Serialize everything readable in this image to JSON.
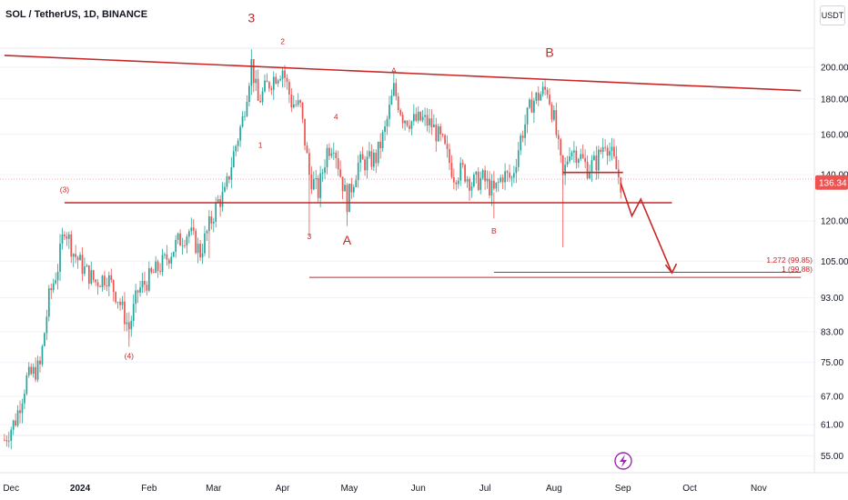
{
  "header": {
    "symbol_title": "SOL / TetherUS, 1D, BINANCE",
    "currency_button": "USDT"
  },
  "colors": {
    "up": "#26a69a",
    "down": "#ef5350",
    "annotation": "#c62828",
    "price_tag": "#ef5350",
    "axis_text": "#131722"
  },
  "chart_data": {
    "type": "candlestick",
    "scale": "log",
    "ylim": [
      52,
      250
    ],
    "y_ticks": [
      "200.00",
      "180.00",
      "160.00",
      "140.00",
      "120.00",
      "105.00",
      "93.00",
      "83.00",
      "75.00",
      "67.00",
      "61.00",
      "55.00"
    ],
    "x_ticks": [
      "Dec",
      "2024",
      "Feb",
      "Mar",
      "Apr",
      "May",
      "Jun",
      "Jul",
      "Aug",
      "Sep",
      "Oct",
      "Nov"
    ],
    "last_price": "136.34",
    "fib_label": "1.272 (99.85)",
    "fib_label_overlap": "1 (99.88)",
    "wave_labels": [
      {
        "text": "3",
        "date": "2024-03-18",
        "price": 232,
        "size": "large"
      },
      {
        "text": "2",
        "date": "2024-04-01",
        "price": 216,
        "size": "small"
      },
      {
        "text": "1",
        "date": "2024-03-22",
        "price": 153,
        "size": "small"
      },
      {
        "text": "4",
        "date": "2024-04-25",
        "price": 168,
        "size": "small"
      },
      {
        "text": "3",
        "date": "2024-04-13",
        "price": 113,
        "size": "small"
      },
      {
        "text": "A",
        "date": "2024-04-30",
        "price": 111,
        "size": "large"
      },
      {
        "text": "A",
        "date": "2024-05-21",
        "price": 196,
        "size": "small"
      },
      {
        "text": "B",
        "date": "2024-07-30",
        "price": 207,
        "size": "large"
      },
      {
        "text": "B",
        "date": "2024-07-05",
        "price": 115,
        "size": "small"
      },
      {
        "text": "(3)",
        "date": "2023-12-25",
        "price": 132,
        "size": "small"
      },
      {
        "text": "(4)",
        "date": "2024-01-23",
        "price": 76,
        "size": "small"
      }
    ],
    "lines": [
      {
        "name": "resistance",
        "from": {
          "date": "2023-11-28",
          "price": 208
        },
        "to": {
          "date": "2024-11-20",
          "price": 185
        }
      },
      {
        "name": "support",
        "from": {
          "date": "2023-12-25",
          "price": 127.5
        },
        "to": {
          "date": "2024-09-23",
          "price": 127.5
        }
      },
      {
        "name": "short-range",
        "from": {
          "date": "2024-08-05",
          "price": 141
        },
        "to": {
          "date": "2024-09-01",
          "price": 141
        }
      },
      {
        "name": "fib-1272",
        "from": {
          "date": "2024-07-05",
          "price": 101.2
        },
        "to": {
          "date": "2024-11-20",
          "price": 101.2
        }
      },
      {
        "name": "fib-1",
        "from": {
          "date": "2024-04-13",
          "price": 99.5
        },
        "to": {
          "date": "2024-11-20",
          "price": 99.5
        }
      }
    ],
    "projection": [
      {
        "date": "2024-08-31",
        "price": 136
      },
      {
        "date": "2024-09-05",
        "price": 122
      },
      {
        "date": "2024-09-09",
        "price": 129
      },
      {
        "date": "2024-09-23",
        "price": 101
      }
    ],
    "ohlc_anchors": [
      [
        "2023-11-28",
        58
      ],
      [
        "2023-12-03",
        62
      ],
      [
        "2023-12-08",
        71
      ],
      [
        "2023-12-14",
        74
      ],
      [
        "2023-12-18",
        93
      ],
      [
        "2023-12-22",
        103
      ],
      [
        "2023-12-25",
        118
      ],
      [
        "2023-12-29",
        108
      ],
      [
        "2024-01-03",
        102
      ],
      [
        "2024-01-08",
        98
      ],
      [
        "2024-01-13",
        100
      ],
      [
        "2024-01-18",
        93
      ],
      [
        "2024-01-23",
        84
      ],
      [
        "2024-01-27",
        95
      ],
      [
        "2024-02-02",
        100
      ],
      [
        "2024-02-08",
        105
      ],
      [
        "2024-02-14",
        112
      ],
      [
        "2024-02-19",
        116
      ],
      [
        "2024-02-24",
        108
      ],
      [
        "2024-02-28",
        118
      ],
      [
        "2024-03-03",
        128
      ],
      [
        "2024-03-06",
        131
      ],
      [
        "2024-03-10",
        150
      ],
      [
        "2024-03-14",
        168
      ],
      [
        "2024-03-18",
        203
      ],
      [
        "2024-03-21",
        178
      ],
      [
        "2024-03-25",
        188
      ],
      [
        "2024-03-29",
        195
      ],
      [
        "2024-04-01",
        199
      ],
      [
        "2024-04-05",
        178
      ],
      [
        "2024-04-09",
        175
      ],
      [
        "2024-04-13",
        140
      ],
      [
        "2024-04-17",
        132
      ],
      [
        "2024-04-21",
        152
      ],
      [
        "2024-04-24",
        156
      ],
      [
        "2024-04-27",
        140
      ],
      [
        "2024-04-30",
        128
      ],
      [
        "2024-05-05",
        145
      ],
      [
        "2024-05-09",
        146
      ],
      [
        "2024-05-13",
        148
      ],
      [
        "2024-05-17",
        162
      ],
      [
        "2024-05-21",
        186
      ],
      [
        "2024-05-25",
        170
      ],
      [
        "2024-05-29",
        167
      ],
      [
        "2024-06-03",
        168
      ],
      [
        "2024-06-07",
        165
      ],
      [
        "2024-06-12",
        155
      ],
      [
        "2024-06-17",
        140
      ],
      [
        "2024-06-21",
        142
      ],
      [
        "2024-06-25",
        136
      ],
      [
        "2024-06-30",
        138
      ],
      [
        "2024-07-05",
        132
      ],
      [
        "2024-07-09",
        140
      ],
      [
        "2024-07-13",
        138
      ],
      [
        "2024-07-17",
        158
      ],
      [
        "2024-07-22",
        178
      ],
      [
        "2024-07-26",
        183
      ],
      [
        "2024-07-29",
        186
      ],
      [
        "2024-08-01",
        168
      ],
      [
        "2024-08-05",
        138
      ],
      [
        "2024-08-08",
        153
      ],
      [
        "2024-08-12",
        150
      ],
      [
        "2024-08-16",
        143
      ],
      [
        "2024-08-20",
        146
      ],
      [
        "2024-08-24",
        157
      ],
      [
        "2024-08-27",
        149
      ],
      [
        "2024-08-31",
        136
      ]
    ]
  }
}
